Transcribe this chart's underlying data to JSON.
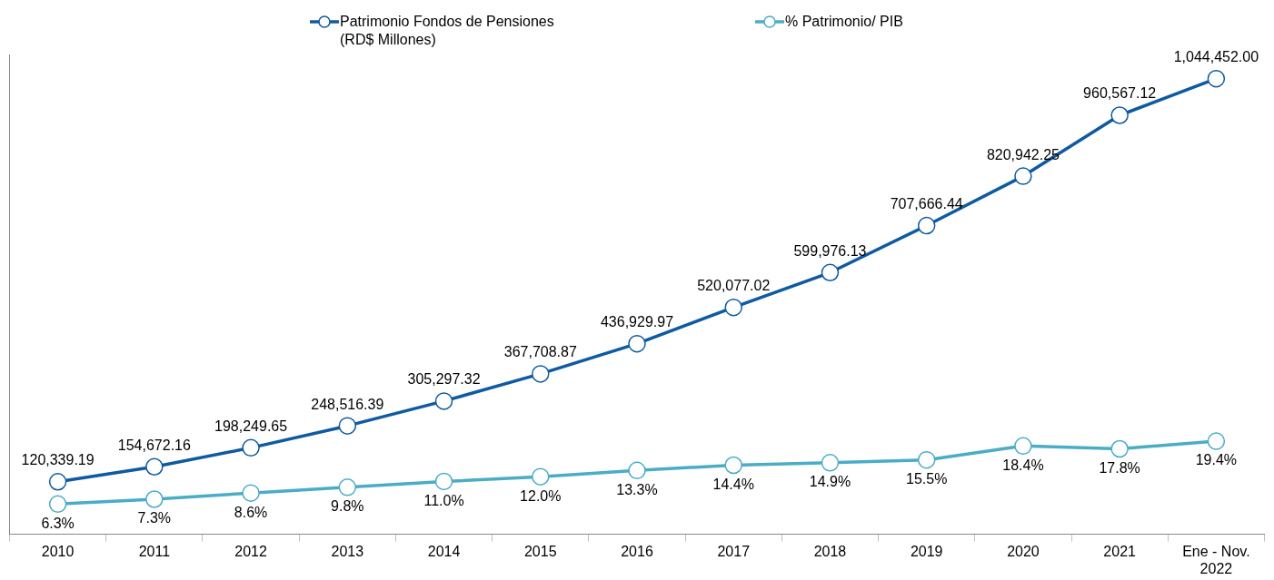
{
  "chart_data": {
    "type": "line",
    "categories": [
      "2010",
      "2011",
      "2012",
      "2013",
      "2014",
      "2015",
      "2016",
      "2017",
      "2018",
      "2019",
      "2020",
      "2021",
      "Ene - Nov.\n2022"
    ],
    "series": [
      {
        "name": "Patrimonio Fondos de Pensiones\n(RD$ Millones)",
        "color": "#0f5aa0",
        "values": [
          120339.19,
          154672.16,
          198249.65,
          248516.39,
          305297.32,
          367708.87,
          436929.97,
          520077.02,
          599976.13,
          707666.44,
          820942.25,
          960567.12,
          1044452.0
        ],
        "value_labels": [
          "120,339.19",
          "154,672.16",
          "198,249.65",
          "248,516.39",
          "305,297.32",
          "367,708.87",
          "436,929.97",
          "520,077.02",
          "599,976.13",
          "707,666.44",
          "820,942.25",
          "960,567.12",
          "1,044,452.00"
        ]
      },
      {
        "name": "% Patrimonio/ PIB",
        "color": "#4bacc6",
        "axis": "y2",
        "values": [
          6.3,
          7.3,
          8.6,
          9.8,
          11.0,
          12.0,
          13.3,
          14.4,
          14.9,
          15.5,
          18.4,
          17.8,
          19.4
        ],
        "value_labels": [
          "6.3%",
          "7.3%",
          "8.6%",
          "9.8%",
          "11.0%",
          "12.0%",
          "13.3%",
          "14.4%",
          "14.9%",
          "15.5%",
          "18.4%",
          "17.8%",
          "19.4%"
        ]
      }
    ],
    "ylim": [
      0,
      1100000
    ],
    "y2lim": [
      0,
      100
    ],
    "data_labels": true,
    "marker": "circle",
    "line_style": "solid",
    "legend": "top",
    "grid": false,
    "tick_labels": "x"
  }
}
